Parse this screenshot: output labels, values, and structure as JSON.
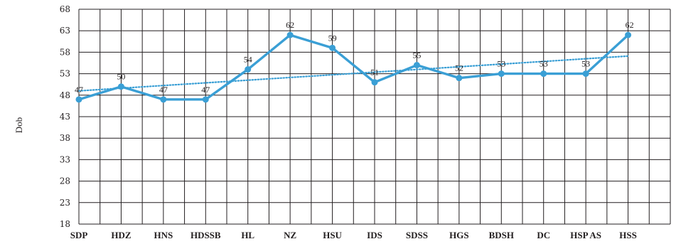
{
  "chart_data": {
    "type": "line",
    "title": "",
    "xlabel": "",
    "ylabel": "Dob",
    "categories": [
      "SDP",
      "HDZ",
      "HNS",
      "HDSSB",
      "HL",
      "NZ",
      "HSU",
      "IDS",
      "SDSS",
      "HGS",
      "BDSH",
      "DC",
      "HSP AS",
      "HSS"
    ],
    "series": [
      {
        "values": [
          47,
          50,
          47,
          47,
          54,
          62,
          59,
          51,
          55,
          52,
          53,
          53,
          53,
          62
        ],
        "style": "solid",
        "markers": true,
        "data_labels": true
      },
      {
        "values": [
          49.0,
          49.62,
          50.25,
          50.87,
          51.49,
          52.12,
          52.74,
          53.36,
          53.98,
          54.61,
          55.23,
          55.85,
          56.48,
          57.1
        ],
        "style": "dotted",
        "markers": false,
        "data_labels": false,
        "kind": "linear trendline"
      }
    ],
    "ylim": [
      18,
      68
    ],
    "yticks": [
      18,
      23,
      28,
      33,
      38,
      43,
      48,
      53,
      58,
      63,
      68
    ],
    "grid": true,
    "legend": "none",
    "colors": {
      "line": "#3a9fd5",
      "trend": "#3a9fd5",
      "grid": "#231f20",
      "text": "#231f20"
    }
  }
}
